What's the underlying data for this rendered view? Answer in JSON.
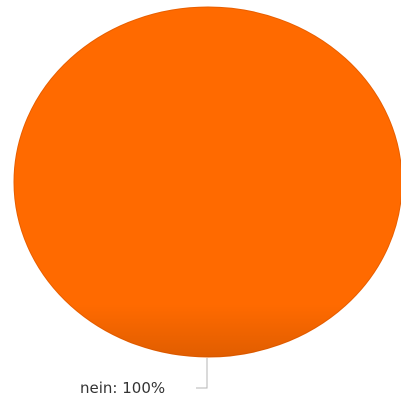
{
  "chart_data": {
    "type": "pie",
    "categories": [
      "nein"
    ],
    "values": [
      100
    ],
    "labels": [
      "nein: 100%"
    ],
    "colors": [
      "#ff6a00"
    ],
    "title": "",
    "legend": "none"
  }
}
